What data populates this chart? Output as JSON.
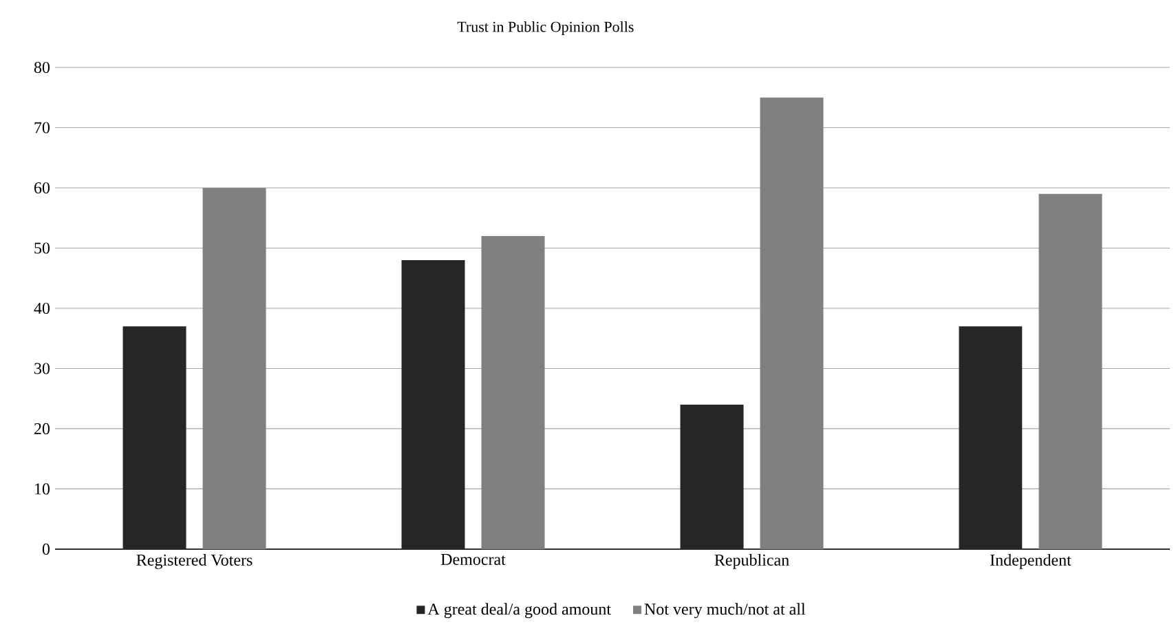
{
  "chart_data": {
    "type": "bar",
    "title": "Trust in Public Opinion Polls",
    "categories": [
      "Registered Voters",
      "Democrat",
      "Republican",
      "Independent"
    ],
    "series": [
      {
        "name": "A great deal/a good amount",
        "color": "#262626",
        "values": [
          37,
          48,
          24,
          37
        ]
      },
      {
        "name": "Not very much/not at all",
        "color": "#808080",
        "values": [
          60,
          52,
          75,
          59
        ]
      }
    ],
    "ylim": [
      0,
      80
    ],
    "yticks": [
      0,
      10,
      20,
      30,
      40,
      50,
      60,
      70,
      80
    ],
    "grid": "y",
    "legend": "bottom"
  }
}
